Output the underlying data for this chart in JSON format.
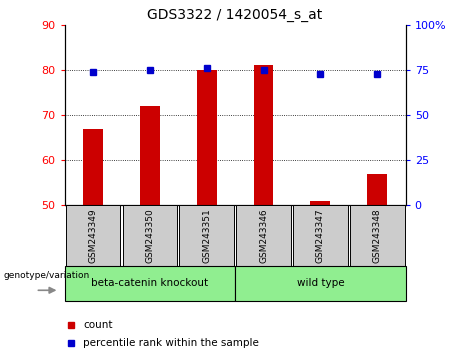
{
  "title": "GDS3322 / 1420054_s_at",
  "categories": [
    "GSM243349",
    "GSM243350",
    "GSM243351",
    "GSM243346",
    "GSM243347",
    "GSM243348"
  ],
  "count_values": [
    67,
    72,
    80,
    81,
    51,
    57
  ],
  "percentile_values": [
    74,
    75,
    76,
    75,
    73,
    73
  ],
  "ylim_left": [
    50,
    90
  ],
  "ylim_right": [
    0,
    100
  ],
  "yticks_left": [
    50,
    60,
    70,
    80,
    90
  ],
  "yticks_right": [
    0,
    25,
    50,
    75,
    100
  ],
  "bar_color": "#cc0000",
  "marker_color": "#0000cc",
  "group1_label": "beta-catenin knockout",
  "group2_label": "wild type",
  "group_bg_color": "#90ee90",
  "tick_bg_color": "#cccccc",
  "legend_count_label": "count",
  "legend_pct_label": "percentile rank within the sample",
  "genotype_label": "genotype/variation"
}
